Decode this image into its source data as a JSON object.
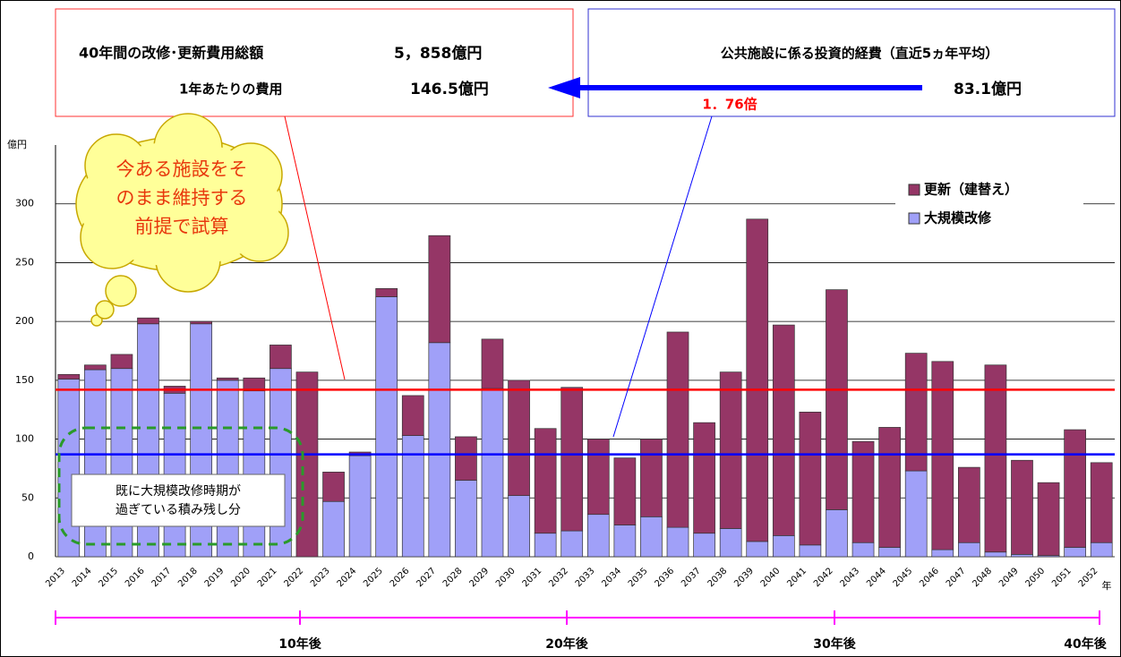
{
  "chart_data": {
    "type": "bar",
    "stacked": true,
    "categories": [
      "2013",
      "2014",
      "2015",
      "2016",
      "2017",
      "2018",
      "2019",
      "2020",
      "2021",
      "2022",
      "2023",
      "2024",
      "2025",
      "2026",
      "2027",
      "2028",
      "2029",
      "2030",
      "2031",
      "2032",
      "2033",
      "2034",
      "2035",
      "2036",
      "2037",
      "2038",
      "2039",
      "2040",
      "2041",
      "2042",
      "2043",
      "2044",
      "2045",
      "2046",
      "2047",
      "2048",
      "2049",
      "2050",
      "2051",
      "2052"
    ],
    "series": [
      {
        "name": "更新（建替え）",
        "color": "#953666",
        "values": [
          4,
          4,
          12,
          5,
          6,
          2,
          2,
          11,
          20,
          157,
          25,
          3,
          7,
          34,
          91,
          37,
          42,
          98,
          89,
          122,
          64,
          57,
          66,
          166,
          94,
          133,
          274,
          179,
          113,
          187,
          86,
          102,
          100,
          160,
          64,
          159,
          80,
          62,
          100,
          68
        ]
      },
      {
        "name": "大規模改修",
        "color": "#a0a0f8",
        "values": [
          151,
          159,
          160,
          198,
          139,
          198,
          150,
          141,
          160,
          0,
          47,
          86,
          221,
          103,
          182,
          65,
          143,
          52,
          20,
          22,
          36,
          27,
          34,
          25,
          20,
          24,
          13,
          18,
          10,
          40,
          12,
          8,
          73,
          6,
          12,
          4,
          2,
          1,
          8,
          12
        ]
      }
    ],
    "ylim": [
      0,
      350
    ],
    "yticks": [
      0,
      50,
      100,
      150,
      200,
      250,
      300
    ],
    "grid": true,
    "y_unit": "億円",
    "x_unit": "年",
    "reference_lines": [
      {
        "value": 142,
        "color": "#ff0000"
      },
      {
        "value": 87,
        "color": "#0000ff"
      }
    ]
  },
  "summary_box": {
    "total_label": "40年間の改修･更新費用総額",
    "total_value": "5，858億円",
    "annual_label": "1年あたりの費用",
    "annual_value": "146.5億円"
  },
  "average_box": {
    "label": "公共施設に係る投資的経費（直近5ヵ年平均）",
    "value": "83.1億円"
  },
  "ratio": "1．76倍",
  "callout": [
    "今ある施設をそ",
    "のまま維持する",
    "前提で試算"
  ],
  "note": [
    "既に大規模改修時期が",
    "過ぎている積み残し分"
  ],
  "timeline": [
    "10年後",
    "20年後",
    "30年後",
    "40年後"
  ]
}
